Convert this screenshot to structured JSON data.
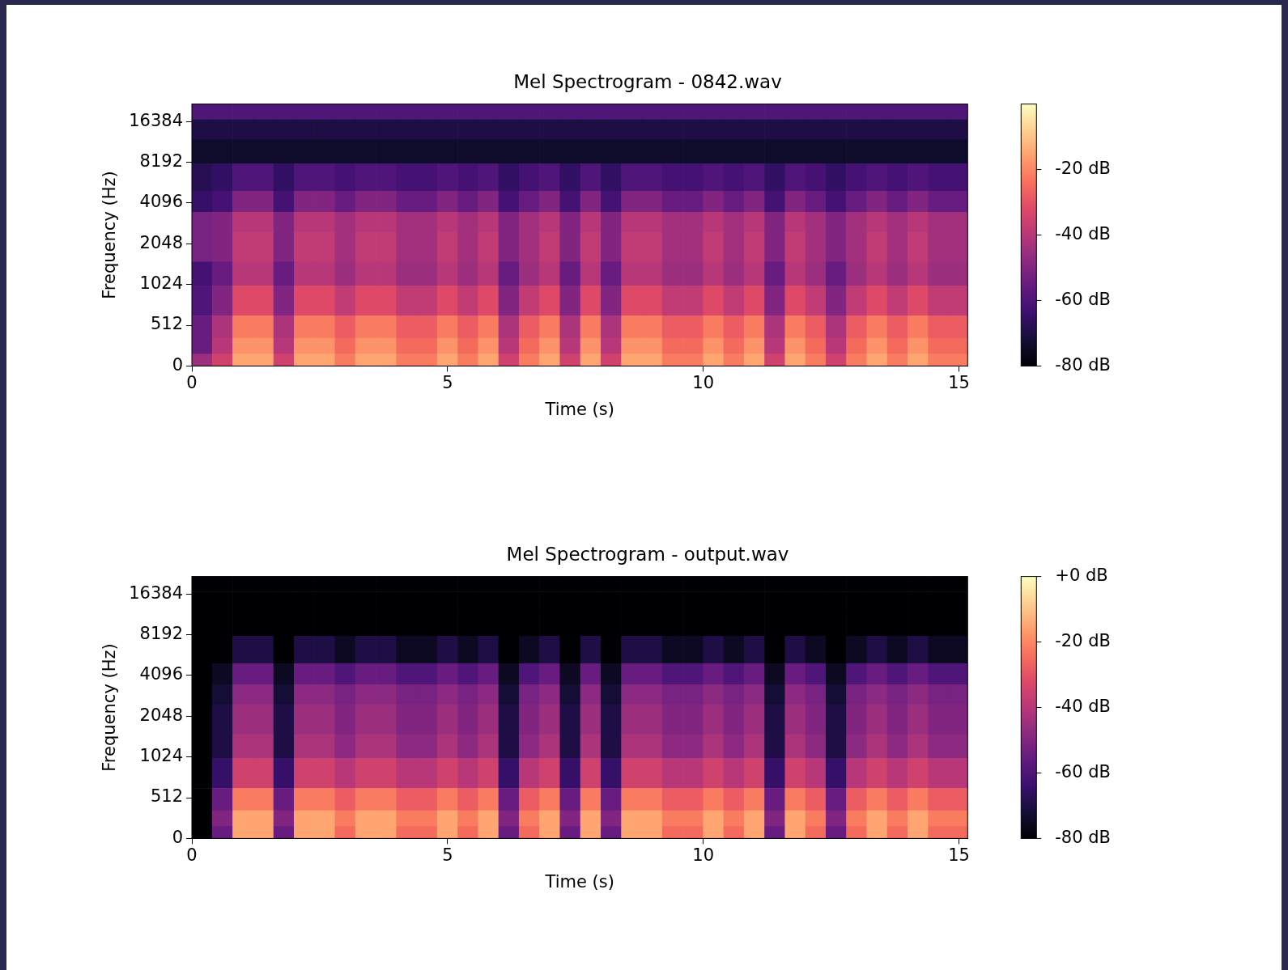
{
  "chart_data": [
    {
      "type": "heatmap",
      "title": "Mel Spectrogram - 0842.wav",
      "x_label": "Time (s)",
      "y_label": "Frequency (Hz)",
      "xlim": [
        0,
        15.17
      ],
      "xticks": [
        0,
        5,
        10,
        15
      ],
      "ylim": [
        0,
        22050
      ],
      "yticks": [
        0,
        512,
        1024,
        2048,
        4096,
        8192,
        16384
      ],
      "log": "y",
      "x": [
        0.2,
        0.6,
        1.0,
        1.4,
        1.8,
        2.2,
        2.6,
        3.0,
        3.4,
        3.8,
        4.2,
        4.6,
        5.0,
        5.4,
        5.8,
        6.2,
        6.6,
        7.0,
        7.4,
        7.8,
        8.2,
        8.6,
        9.0,
        9.4,
        9.8,
        10.2,
        10.6,
        11.0,
        11.4,
        11.8,
        12.2,
        12.6,
        13.0,
        13.4,
        13.8,
        14.2,
        14.6,
        15.0
      ],
      "y_bins": [
        0,
        150,
        350,
        600,
        1000,
        1500,
        2500,
        3500,
        5000,
        8000,
        12000,
        17000,
        22050
      ],
      "cells": [
        [
          -45,
          -35,
          -15,
          -15,
          -35,
          -15,
          -15,
          -22,
          -15,
          -15,
          -22,
          -22,
          -15,
          -22,
          -15,
          -35,
          -22,
          -15,
          -35,
          -15,
          -35,
          -15,
          -15,
          -22,
          -22,
          -15,
          -22,
          -15,
          -35,
          -15,
          -22,
          -35,
          -22,
          -15,
          -22,
          -15,
          -22,
          -22
        ],
        [
          -55,
          -40,
          -18,
          -18,
          -40,
          -18,
          -18,
          -25,
          -18,
          -18,
          -25,
          -25,
          -18,
          -25,
          -18,
          -40,
          -25,
          -18,
          -40,
          -18,
          -40,
          -18,
          -18,
          -25,
          -25,
          -18,
          -25,
          -18,
          -40,
          -18,
          -25,
          -40,
          -25,
          -18,
          -25,
          -18,
          -25,
          -25
        ],
        [
          -55,
          -42,
          -22,
          -22,
          -42,
          -22,
          -22,
          -28,
          -22,
          -22,
          -28,
          -28,
          -22,
          -28,
          -22,
          -42,
          -28,
          -22,
          -42,
          -22,
          -42,
          -22,
          -22,
          -28,
          -28,
          -22,
          -28,
          -22,
          -42,
          -22,
          -28,
          -42,
          -28,
          -22,
          -28,
          -22,
          -28,
          -28
        ],
        [
          -60,
          -50,
          -32,
          -32,
          -50,
          -32,
          -32,
          -38,
          -32,
          -32,
          -38,
          -38,
          -32,
          -38,
          -32,
          -50,
          -38,
          -32,
          -50,
          -32,
          -50,
          -32,
          -32,
          -38,
          -38,
          -32,
          -38,
          -32,
          -50,
          -32,
          -38,
          -50,
          -38,
          -32,
          -38,
          -32,
          -38,
          -38
        ],
        [
          -62,
          -55,
          -40,
          -40,
          -55,
          -40,
          -40,
          -45,
          -40,
          -40,
          -45,
          -45,
          -40,
          -45,
          -40,
          -55,
          -45,
          -40,
          -55,
          -40,
          -55,
          -40,
          -40,
          -45,
          -45,
          -40,
          -45,
          -40,
          -55,
          -40,
          -45,
          -55,
          -45,
          -40,
          -45,
          -40,
          -45,
          -45
        ],
        [
          -52,
          -50,
          -38,
          -38,
          -50,
          -38,
          -38,
          -44,
          -38,
          -38,
          -44,
          -44,
          -38,
          -44,
          -38,
          -50,
          -44,
          -38,
          -50,
          -38,
          -50,
          -38,
          -38,
          -44,
          -44,
          -38,
          -44,
          -38,
          -50,
          -38,
          -44,
          -50,
          -44,
          -38,
          -44,
          -38,
          -44,
          -44
        ],
        [
          -52,
          -50,
          -40,
          -40,
          -50,
          -40,
          -40,
          -44,
          -40,
          -40,
          -44,
          -44,
          -40,
          -44,
          -40,
          -50,
          -44,
          -40,
          -50,
          -40,
          -50,
          -40,
          -40,
          -44,
          -44,
          -40,
          -44,
          -40,
          -50,
          -40,
          -44,
          -50,
          -44,
          -40,
          -44,
          -40,
          -44,
          -44
        ],
        [
          -65,
          -62,
          -50,
          -50,
          -62,
          -50,
          -50,
          -55,
          -50,
          -50,
          -55,
          -55,
          -50,
          -55,
          -50,
          -62,
          -55,
          -50,
          -62,
          -50,
          -62,
          -50,
          -50,
          -55,
          -55,
          -50,
          -55,
          -50,
          -62,
          -50,
          -55,
          -62,
          -55,
          -50,
          -55,
          -50,
          -55,
          -55
        ],
        [
          -68,
          -66,
          -60,
          -60,
          -66,
          -60,
          -60,
          -62,
          -60,
          -60,
          -62,
          -62,
          -60,
          -62,
          -60,
          -66,
          -62,
          -60,
          -66,
          -60,
          -66,
          -60,
          -60,
          -62,
          -62,
          -60,
          -62,
          -60,
          -66,
          -60,
          -62,
          -66,
          -62,
          -60,
          -62,
          -60,
          -62,
          -62
        ],
        [
          -74,
          -74,
          -74,
          -74,
          -74,
          -74,
          -74,
          -74,
          -74,
          -74,
          -74,
          -74,
          -74,
          -74,
          -74,
          -74,
          -74,
          -74,
          -74,
          -74,
          -74,
          -74,
          -74,
          -74,
          -74,
          -74,
          -74,
          -74,
          -74,
          -74,
          -74,
          -74,
          -74,
          -74,
          -74,
          -74,
          -74,
          -74
        ],
        [
          -70,
          -70,
          -70,
          -70,
          -70,
          -70,
          -70,
          -70,
          -70,
          -70,
          -70,
          -70,
          -70,
          -70,
          -70,
          -70,
          -70,
          -70,
          -70,
          -70,
          -70,
          -70,
          -70,
          -70,
          -70,
          -70,
          -70,
          -70,
          -70,
          -70,
          -70,
          -70,
          -70,
          -70,
          -70,
          -70,
          -70,
          -70
        ],
        [
          -60,
          -60,
          -60,
          -60,
          -60,
          -60,
          -60,
          -60,
          -60,
          -60,
          -60,
          -60,
          -60,
          -60,
          -60,
          -60,
          -60,
          -60,
          -60,
          -60,
          -60,
          -60,
          -60,
          -60,
          -60,
          -60,
          -60,
          -60,
          -60,
          -60,
          -60,
          -60,
          -60,
          -60,
          -60,
          -60,
          -60,
          -60
        ]
      ],
      "colorbar": {
        "range": [
          -80,
          0
        ],
        "ticks": [
          {
            "value": -80,
            "label": "-80 dB"
          },
          {
            "value": -60,
            "label": "-60 dB"
          },
          {
            "value": -40,
            "label": "-40 dB"
          },
          {
            "value": -20,
            "label": "-20 dB"
          }
        ]
      }
    },
    {
      "type": "heatmap",
      "title": "Mel Spectrogram - output.wav",
      "x_label": "Time (s)",
      "y_label": "Frequency (Hz)",
      "xlim": [
        0,
        15.17
      ],
      "xticks": [
        0,
        5,
        10,
        15
      ],
      "ylim": [
        0,
        22050
      ],
      "yticks": [
        0,
        512,
        1024,
        2048,
        4096,
        8192,
        16384
      ],
      "log": "y",
      "x": [
        0.2,
        0.6,
        1.0,
        1.4,
        1.8,
        2.2,
        2.6,
        3.0,
        3.4,
        3.8,
        4.2,
        4.6,
        5.0,
        5.4,
        5.8,
        6.2,
        6.6,
        7.0,
        7.4,
        7.8,
        8.2,
        8.6,
        9.0,
        9.4,
        9.8,
        10.2,
        10.6,
        11.0,
        11.4,
        11.8,
        12.2,
        12.6,
        13.0,
        13.4,
        13.8,
        14.2,
        14.6,
        15.0
      ],
      "y_bins": [
        0,
        150,
        350,
        600,
        1000,
        1500,
        2500,
        3500,
        5000,
        8000,
        12000,
        17000,
        22050
      ],
      "cells": [
        [
          -80,
          -55,
          -15,
          -15,
          -55,
          -15,
          -15,
          -25,
          -15,
          -15,
          -25,
          -25,
          -15,
          -25,
          -15,
          -55,
          -25,
          -15,
          -55,
          -15,
          -55,
          -15,
          -15,
          -25,
          -25,
          -15,
          -25,
          -15,
          -55,
          -15,
          -25,
          -55,
          -25,
          -15,
          -25,
          -15,
          -25,
          -25
        ],
        [
          -80,
          -50,
          -15,
          -15,
          -50,
          -15,
          -15,
          -22,
          -15,
          -15,
          -22,
          -22,
          -15,
          -22,
          -15,
          -50,
          -22,
          -15,
          -50,
          -15,
          -50,
          -15,
          -15,
          -22,
          -22,
          -15,
          -22,
          -15,
          -50,
          -15,
          -22,
          -50,
          -22,
          -15,
          -22,
          -15,
          -22,
          -22
        ],
        [
          -80,
          -55,
          -22,
          -22,
          -55,
          -22,
          -22,
          -28,
          -22,
          -22,
          -28,
          -28,
          -22,
          -28,
          -22,
          -55,
          -28,
          -22,
          -55,
          -22,
          -55,
          -22,
          -22,
          -28,
          -28,
          -22,
          -28,
          -22,
          -55,
          -22,
          -28,
          -55,
          -28,
          -22,
          -28,
          -22,
          -28,
          -28
        ],
        [
          -80,
          -65,
          -35,
          -35,
          -65,
          -35,
          -35,
          -40,
          -35,
          -35,
          -40,
          -40,
          -35,
          -40,
          -35,
          -65,
          -40,
          -35,
          -65,
          -35,
          -65,
          -35,
          -35,
          -40,
          -40,
          -35,
          -40,
          -35,
          -65,
          -35,
          -40,
          -65,
          -40,
          -35,
          -40,
          -35,
          -40,
          -40
        ],
        [
          -80,
          -70,
          -42,
          -42,
          -70,
          -42,
          -42,
          -48,
          -42,
          -42,
          -48,
          -48,
          -42,
          -48,
          -42,
          -70,
          -48,
          -42,
          -70,
          -42,
          -70,
          -42,
          -42,
          -48,
          -48,
          -42,
          -48,
          -42,
          -70,
          -42,
          -48,
          -70,
          -48,
          -42,
          -48,
          -42,
          -48,
          -48
        ],
        [
          -80,
          -70,
          -45,
          -45,
          -70,
          -45,
          -45,
          -50,
          -45,
          -45,
          -50,
          -50,
          -45,
          -50,
          -45,
          -70,
          -50,
          -45,
          -70,
          -45,
          -70,
          -45,
          -45,
          -50,
          -50,
          -45,
          -50,
          -45,
          -70,
          -45,
          -50,
          -70,
          -50,
          -45,
          -50,
          -45,
          -50,
          -50
        ],
        [
          -80,
          -72,
          -48,
          -48,
          -72,
          -48,
          -48,
          -52,
          -48,
          -48,
          -52,
          -52,
          -48,
          -52,
          -48,
          -72,
          -52,
          -48,
          -72,
          -48,
          -72,
          -48,
          -48,
          -52,
          -52,
          -48,
          -52,
          -48,
          -72,
          -48,
          -52,
          -72,
          -52,
          -48,
          -52,
          -48,
          -52,
          -52
        ],
        [
          -80,
          -75,
          -55,
          -55,
          -75,
          -55,
          -55,
          -60,
          -55,
          -55,
          -60,
          -60,
          -55,
          -60,
          -55,
          -75,
          -60,
          -55,
          -75,
          -55,
          -75,
          -55,
          -55,
          -60,
          -60,
          -55,
          -60,
          -55,
          -75,
          -55,
          -60,
          -75,
          -60,
          -55,
          -60,
          -55,
          -60,
          -60
        ],
        [
          -80,
          -80,
          -70,
          -70,
          -80,
          -70,
          -70,
          -75,
          -70,
          -70,
          -75,
          -75,
          -70,
          -75,
          -70,
          -80,
          -75,
          -70,
          -80,
          -70,
          -80,
          -70,
          -70,
          -75,
          -75,
          -70,
          -75,
          -70,
          -80,
          -70,
          -75,
          -80,
          -75,
          -70,
          -75,
          -70,
          -75,
          -75
        ],
        [
          -80,
          -80,
          -80,
          -80,
          -80,
          -80,
          -80,
          -80,
          -80,
          -80,
          -80,
          -80,
          -80,
          -80,
          -80,
          -80,
          -80,
          -80,
          -80,
          -80,
          -80,
          -80,
          -80,
          -80,
          -80,
          -80,
          -80,
          -80,
          -80,
          -80,
          -80,
          -80,
          -80,
          -80,
          -80,
          -80,
          -80,
          -80
        ],
        [
          -80,
          -80,
          -80,
          -80,
          -80,
          -80,
          -80,
          -80,
          -80,
          -80,
          -80,
          -80,
          -80,
          -80,
          -80,
          -80,
          -80,
          -80,
          -80,
          -80,
          -80,
          -80,
          -80,
          -80,
          -80,
          -80,
          -80,
          -80,
          -80,
          -80,
          -80,
          -80,
          -80,
          -80,
          -80,
          -80,
          -80,
          -80
        ],
        [
          -80,
          -80,
          -80,
          -80,
          -80,
          -80,
          -80,
          -80,
          -80,
          -80,
          -80,
          -80,
          -80,
          -80,
          -80,
          -80,
          -80,
          -80,
          -80,
          -80,
          -80,
          -80,
          -80,
          -80,
          -80,
          -80,
          -80,
          -80,
          -80,
          -80,
          -80,
          -80,
          -80,
          -80,
          -80,
          -80,
          -80,
          -80
        ]
      ],
      "colorbar": {
        "range": [
          -80,
          0
        ],
        "ticks": [
          {
            "value": -80,
            "label": "-80 dB"
          },
          {
            "value": -60,
            "label": "-60 dB"
          },
          {
            "value": -40,
            "label": "-40 dB"
          },
          {
            "value": -20,
            "label": "-20 dB"
          },
          {
            "value": 0,
            "label": "+0 dB"
          }
        ]
      }
    }
  ]
}
